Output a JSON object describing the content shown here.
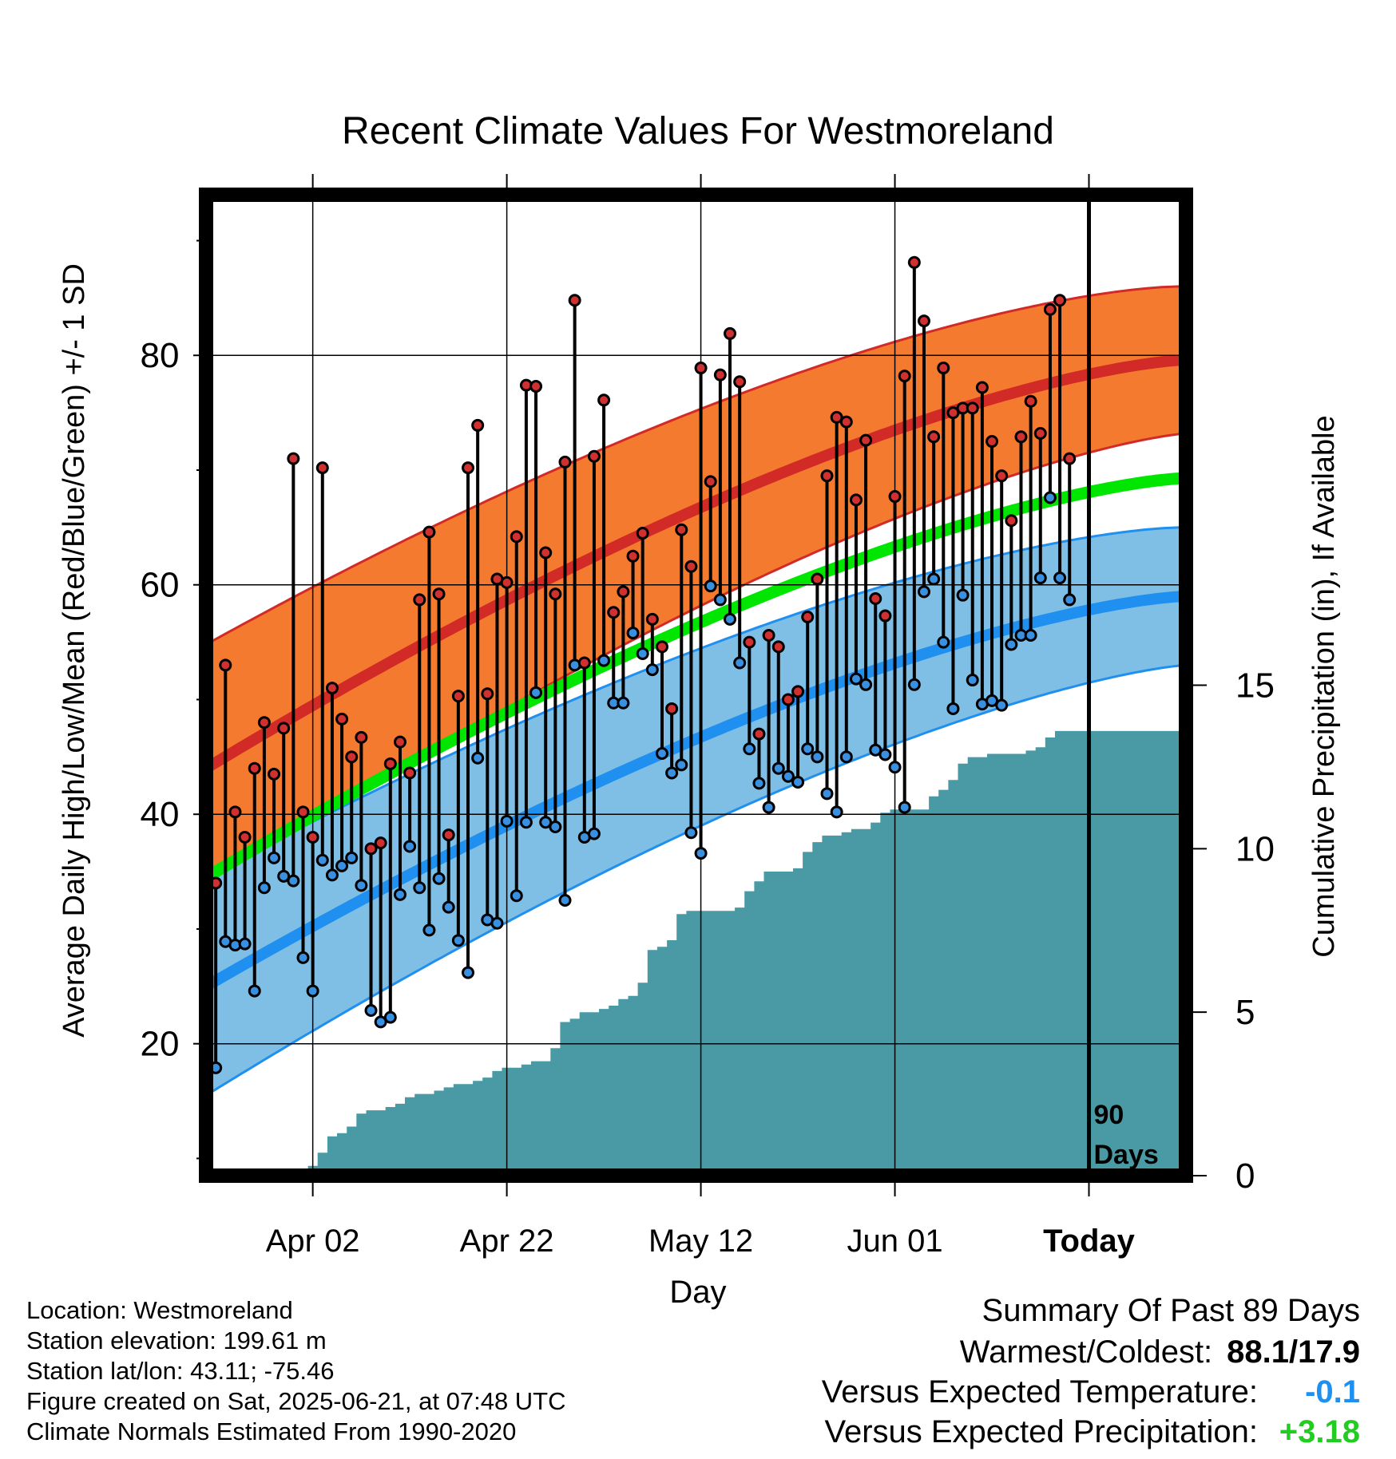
{
  "chart_data": {
    "type": "line",
    "title": "Recent Climate Values For Westmoreland",
    "xlabel": "Day",
    "ylabel": "Average Daily High/Low/Mean (Red/Blue/Green) +/- 1 SD",
    "ylabel_right": "Cumulative Precipitation (in), If Available",
    "x_tick_labels": [
      "Apr 02",
      "Apr 22",
      "May 12",
      "Jun 01",
      "Today"
    ],
    "x_tick_days": [
      11,
      31,
      51,
      71,
      91
    ],
    "xlim": [
      0,
      101
    ],
    "ylim": [
      8.5,
      94
    ],
    "y_ticks": [
      20,
      40,
      60,
      80
    ],
    "y_minor_ticks": [
      10,
      30,
      50,
      70,
      90
    ],
    "y2lim": [
      0,
      30
    ],
    "y2_ticks": [
      0,
      5,
      10,
      15
    ],
    "today_day": 91,
    "today_label": "90\nDays",
    "normal_high": {
      "start": 44.0,
      "end": 79.6
    },
    "normal_low": {
      "start": 25.0,
      "end": 59.0
    },
    "normal_mean": {
      "start": 34.5,
      "end": 69.3
    },
    "high_sd": {
      "start": 10.8,
      "end": 6.4
    },
    "low_sd": {
      "start": 9.5,
      "end": 6.0
    },
    "colors": {
      "high_band": "#f47a30",
      "high_line": "#d22a26",
      "low_band": "#7fbfe6",
      "low_line": "#1f8ff0",
      "mean_line": "#00e600",
      "precip": "#4a9aa5",
      "high_dot": "#d03030",
      "low_dot": "#3a90e0"
    },
    "series": [
      {
        "name": "High",
        "values": [
          34.0,
          53.0,
          40.2,
          38.0,
          44.0,
          48.0,
          43.5,
          47.5,
          71.0,
          40.2,
          38.0,
          70.2,
          51.0,
          48.3,
          45.0,
          46.7,
          37.0,
          37.5,
          44.4,
          46.3,
          43.6,
          58.7,
          64.6,
          59.2,
          38.2,
          50.3,
          70.2,
          73.9,
          50.5,
          60.5,
          60.2,
          64.2,
          77.4,
          77.3,
          62.8,
          59.2,
          70.7,
          84.8,
          53.2,
          71.2,
          76.1,
          57.6,
          59.4,
          62.5,
          64.5,
          57.0,
          54.6,
          49.2,
          64.8,
          61.6,
          78.9,
          69.0,
          78.3,
          81.9,
          77.7,
          55.0,
          47.0,
          55.6,
          54.6,
          50.0,
          50.7,
          57.2,
          60.5,
          69.5,
          74.6,
          74.2,
          67.4,
          72.6,
          58.8,
          57.3,
          67.7,
          78.2,
          88.1,
          83.0,
          72.9,
          78.9,
          75.0,
          75.4,
          75.4,
          77.2,
          72.5,
          69.5,
          65.6,
          72.9,
          76.0,
          73.2,
          84.0,
          84.8,
          71.0
        ]
      },
      {
        "name": "Low",
        "values": [
          17.9,
          28.9,
          28.6,
          28.7,
          24.6,
          33.6,
          36.2,
          34.6,
          34.2,
          27.5,
          24.6,
          36.0,
          34.7,
          35.5,
          36.2,
          33.8,
          22.9,
          21.9,
          22.3,
          33.0,
          37.2,
          33.6,
          29.9,
          34.4,
          31.9,
          29.0,
          26.2,
          44.9,
          30.8,
          30.5,
          39.4,
          32.9,
          39.3,
          50.6,
          39.3,
          38.9,
          32.5,
          53.0,
          38.0,
          38.3,
          53.4,
          49.7,
          49.7,
          55.8,
          54.0,
          52.6,
          45.3,
          43.6,
          44.3,
          38.4,
          36.6,
          59.9,
          58.7,
          57.0,
          53.2,
          45.7,
          42.7,
          40.6,
          44.0,
          43.3,
          42.8,
          45.7,
          45.0,
          41.8,
          40.2,
          45.0,
          51.8,
          51.3,
          45.6,
          45.2,
          44.1,
          40.6,
          51.3,
          59.4,
          60.5,
          55.0,
          49.2,
          59.1,
          51.7,
          49.6,
          49.9,
          49.5,
          54.8,
          55.6,
          55.6,
          60.6,
          67.6,
          60.6,
          58.7
        ]
      },
      {
        "name": "Cumulative Precipitation",
        "values": [
          0,
          0,
          0,
          0,
          0,
          0,
          0,
          0,
          0.02,
          0.04,
          0.3,
          0.7,
          1.2,
          1.3,
          1.5,
          1.9,
          2.0,
          2.0,
          2.1,
          2.2,
          2.4,
          2.5,
          2.5,
          2.6,
          2.7,
          2.8,
          2.8,
          2.9,
          3.0,
          3.2,
          3.3,
          3.3,
          3.4,
          3.5,
          3.5,
          3.9,
          4.7,
          4.8,
          5.0,
          5.0,
          5.1,
          5.2,
          5.4,
          5.5,
          5.9,
          6.9,
          7.0,
          7.2,
          8.0,
          8.1,
          8.1,
          8.1,
          8.1,
          8.1,
          8.2,
          8.7,
          9.0,
          9.3,
          9.3,
          9.3,
          9.4,
          9.9,
          10.2,
          10.4,
          10.4,
          10.5,
          10.6,
          10.6,
          10.8,
          11.1,
          11.2,
          11.2,
          11.2,
          11.2,
          11.6,
          11.8,
          12.1,
          12.6,
          12.8,
          12.8,
          12.9,
          12.9,
          12.9,
          12.9,
          13.0,
          13.1,
          13.4,
          13.6,
          13.6
        ]
      }
    ]
  },
  "location_lines": [
    "Location: Westmoreland",
    "Station elevation: 199.61 m",
    "Station lat/lon: 43.11; -75.46",
    "Figure created on Sat, 2025-06-21, at 07:48 UTC",
    "Climate Normals Estimated From 1990-2020"
  ],
  "summary": {
    "title": "Summary Of Past 89 Days",
    "warm_cold_label": "Warmest/Coldest:",
    "warm_cold_value": "88.1/17.9",
    "temp_label": "Versus Expected Temperature:",
    "temp_value": "-0.1",
    "temp_color": "#1f8ff0",
    "precip_label": "Versus Expected Precipitation:",
    "precip_value": "+3.18",
    "precip_color": "#22cc22"
  }
}
